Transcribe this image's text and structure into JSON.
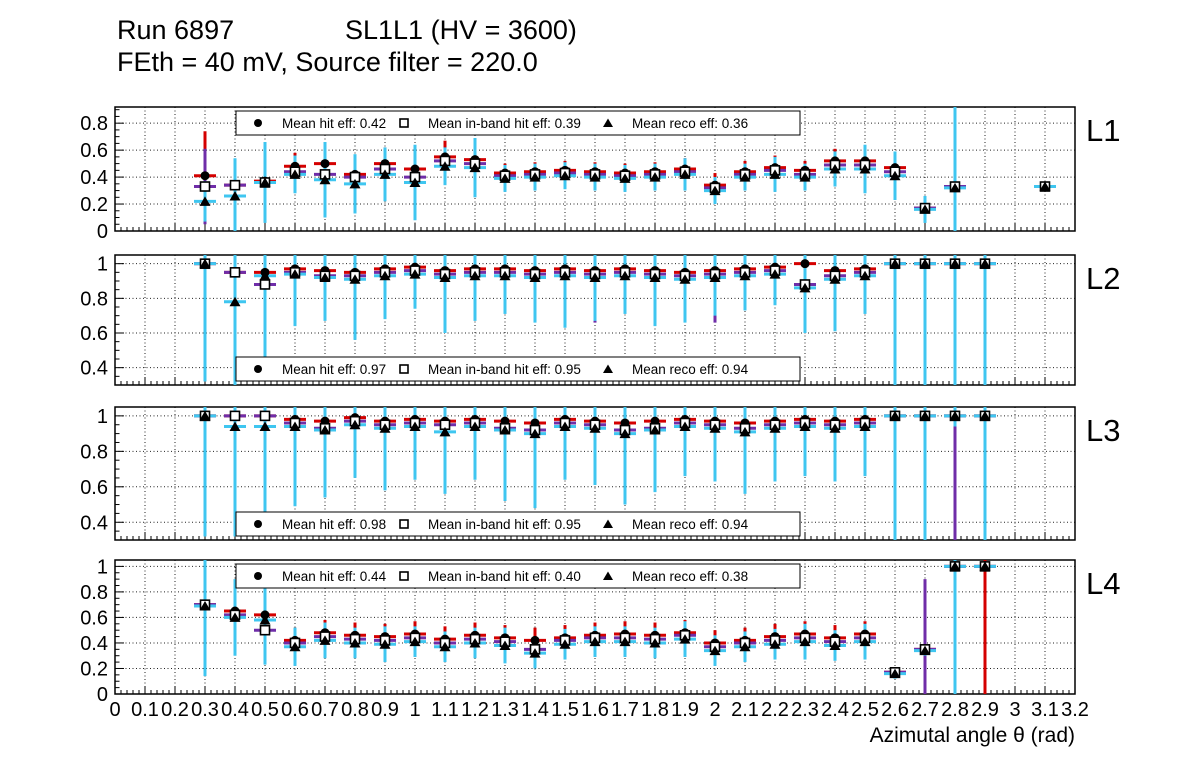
{
  "header": {
    "run_title": "Run 6897",
    "chamber_title": "SL1L1 (HV = 3600)",
    "subtitle": "FEth = 40 mV, Source filter = 220.0"
  },
  "x_axis": {
    "title": "Azimutal angle θ (rad)",
    "min": 0,
    "max": 3.2,
    "tick_labels": [
      "0",
      "0.1",
      "0.2",
      "0.3",
      "0.4",
      "0.5",
      "0.6",
      "0.7",
      "0.8",
      "0.9",
      "1",
      "1.1",
      "1.2",
      "1.3",
      "1.4",
      "1.5",
      "1.6",
      "1.7",
      "1.8",
      "1.9",
      "2",
      "2.1",
      "2.2",
      "2.3",
      "2.4",
      "2.5",
      "2.6",
      "2.7",
      "2.8",
      "2.9",
      "3",
      "3.1",
      "3.2"
    ],
    "grid": true
  },
  "palette": {
    "hit_error": "#d40000",
    "inband_error": "#6f2da8",
    "reco_error": "#3fc6f0",
    "marker": "#000000"
  },
  "chart_data": [
    {
      "type": "scatter",
      "label": "L1",
      "ylim": [
        0,
        0.92
      ],
      "yticks": [
        0,
        0.2,
        0.4,
        0.6,
        0.8
      ],
      "legend": {
        "position": "top",
        "entries": [
          {
            "marker": "circle",
            "label": "Mean hit  eff: 0.42"
          },
          {
            "marker": "square",
            "label": "Mean in-band hit eff: 0.39"
          },
          {
            "marker": "triangle",
            "label": "Mean reco eff: 0.36"
          }
        ]
      },
      "x": [
        0.3,
        0.4,
        0.5,
        0.6,
        0.7,
        0.8,
        0.9,
        1.0,
        1.1,
        1.2,
        1.3,
        1.4,
        1.5,
        1.6,
        1.7,
        1.8,
        1.9,
        2.0,
        2.1,
        2.2,
        2.3,
        2.4,
        2.5,
        2.6,
        2.7,
        2.8,
        3.1
      ],
      "series": [
        {
          "name": "hit eff",
          "marker": "circle",
          "color": "#d40000",
          "values": [
            0.41,
            0.34,
            0.37,
            0.48,
            0.5,
            0.42,
            0.5,
            0.46,
            0.55,
            0.53,
            0.43,
            0.44,
            0.45,
            0.44,
            0.43,
            0.44,
            0.46,
            0.34,
            0.44,
            0.47,
            0.45,
            0.52,
            0.52,
            0.47,
            0.17,
            0.33,
            0.33
          ],
          "errors": [
            0.33,
            0.1,
            0.1,
            0.1,
            0.12,
            0.1,
            0.12,
            0.12,
            0.12,
            0.12,
            0.07,
            0.07,
            0.07,
            0.07,
            0.07,
            0.07,
            0.08,
            0.09,
            0.08,
            0.09,
            0.07,
            0.09,
            0.1,
            0.1,
            0.04,
            0.03,
            0.02
          ]
        },
        {
          "name": "in-band hit eff",
          "marker": "square",
          "color": "#6f2da8",
          "values": [
            0.33,
            0.34,
            0.36,
            0.44,
            0.42,
            0.4,
            0.46,
            0.4,
            0.52,
            0.5,
            0.41,
            0.42,
            0.43,
            0.42,
            0.41,
            0.42,
            0.44,
            0.32,
            0.42,
            0.45,
            0.42,
            0.49,
            0.49,
            0.44,
            0.17,
            0.33,
            0.33
          ],
          "errors": [
            0.28,
            0.09,
            0.09,
            0.09,
            0.1,
            0.09,
            0.1,
            0.1,
            0.1,
            0.1,
            0.06,
            0.06,
            0.06,
            0.06,
            0.06,
            0.06,
            0.07,
            0.08,
            0.07,
            0.08,
            0.06,
            0.08,
            0.09,
            0.09,
            0.04,
            0.03,
            0.02
          ]
        },
        {
          "name": "reco eff",
          "marker": "triangle",
          "color": "#3fc6f0",
          "values": [
            0.22,
            0.26,
            0.36,
            0.42,
            0.38,
            0.35,
            0.42,
            0.36,
            0.48,
            0.47,
            0.39,
            0.4,
            0.41,
            0.4,
            0.39,
            0.4,
            0.42,
            0.3,
            0.4,
            0.42,
            0.4,
            0.46,
            0.46,
            0.41,
            0.16,
            0.32,
            0.33
          ],
          "errors": [
            0.15,
            0.28,
            0.3,
            0.14,
            0.28,
            0.22,
            0.2,
            0.28,
            0.14,
            0.22,
            0.1,
            0.1,
            0.1,
            0.1,
            0.1,
            0.1,
            0.12,
            0.1,
            0.1,
            0.13,
            0.1,
            0.13,
            0.18,
            0.18,
            0.1,
            0.92,
            0.03
          ]
        }
      ]
    },
    {
      "type": "scatter",
      "label": "L2",
      "ylim": [
        0.3,
        1.05
      ],
      "yticks": [
        0.4,
        0.6,
        0.8,
        1
      ],
      "legend": {
        "position": "bottom",
        "entries": [
          {
            "marker": "circle",
            "label": "Mean hit  eff: 0.97"
          },
          {
            "marker": "square",
            "label": "Mean in-band hit eff: 0.95"
          },
          {
            "marker": "triangle",
            "label": "Mean reco eff: 0.94"
          }
        ]
      },
      "x": [
        0.3,
        0.4,
        0.5,
        0.6,
        0.7,
        0.8,
        0.9,
        1.0,
        1.1,
        1.2,
        1.3,
        1.4,
        1.5,
        1.6,
        1.7,
        1.8,
        1.9,
        2.0,
        2.1,
        2.2,
        2.3,
        2.4,
        2.5,
        2.6,
        2.7,
        2.8,
        2.9
      ],
      "series": [
        {
          "name": "hit eff",
          "marker": "circle",
          "color": "#d40000",
          "values": [
            1.0,
            0.95,
            0.95,
            0.97,
            0.96,
            0.95,
            0.97,
            0.98,
            0.96,
            0.97,
            0.97,
            0.96,
            0.97,
            0.96,
            0.97,
            0.96,
            0.95,
            0.96,
            0.97,
            0.98,
            1.0,
            0.96,
            0.97,
            1.0,
            1.0,
            1.0,
            1.0
          ],
          "errors": 0.03
        },
        {
          "name": "in-band hit eff",
          "marker": "square",
          "color": "#6f2da8",
          "values": [
            1.0,
            0.95,
            0.88,
            0.95,
            0.93,
            0.93,
            0.95,
            0.96,
            0.94,
            0.95,
            0.95,
            0.94,
            0.95,
            0.94,
            0.95,
            0.94,
            0.93,
            0.94,
            0.95,
            0.96,
            0.88,
            0.93,
            0.95,
            1.0,
            1.0,
            1.0,
            1.0
          ],
          "errors": [
            0.05,
            0.05,
            0.06,
            0.05,
            0.05,
            0.05,
            0.05,
            0.05,
            0.05,
            0.05,
            0.05,
            0.05,
            0.05,
            0.28,
            0.05,
            0.05,
            0.05,
            0.28,
            0.05,
            0.05,
            0.06,
            0.05,
            0.05,
            0.04,
            0.04,
            0.04,
            0.04
          ]
        },
        {
          "name": "reco eff",
          "marker": "triangle",
          "color": "#3fc6f0",
          "values": [
            1.0,
            0.78,
            0.93,
            0.94,
            0.92,
            0.91,
            0.93,
            0.94,
            0.92,
            0.93,
            0.93,
            0.92,
            0.93,
            0.92,
            0.93,
            0.92,
            0.91,
            0.92,
            0.93,
            0.94,
            0.86,
            0.91,
            0.93,
            1.0,
            1.0,
            1.0,
            1.0
          ],
          "errors": [
            0.68,
            0.58,
            0.52,
            0.3,
            0.25,
            0.35,
            0.25,
            0.2,
            0.32,
            0.26,
            0.22,
            0.26,
            0.3,
            0.25,
            0.22,
            0.28,
            0.25,
            0.22,
            0.2,
            0.18,
            0.26,
            0.3,
            0.22,
            0.75,
            0.75,
            0.75,
            0.75
          ]
        }
      ]
    },
    {
      "type": "scatter",
      "label": "L3",
      "ylim": [
        0.3,
        1.05
      ],
      "yticks": [
        0.4,
        0.6,
        0.8,
        1
      ],
      "legend": {
        "position": "bottom",
        "entries": [
          {
            "marker": "circle",
            "label": "Mean hit  eff: 0.98"
          },
          {
            "marker": "square",
            "label": "Mean in-band hit eff: 0.95"
          },
          {
            "marker": "triangle",
            "label": "Mean reco eff: 0.94"
          }
        ]
      },
      "x": [
        0.3,
        0.4,
        0.5,
        0.6,
        0.7,
        0.8,
        0.9,
        1.0,
        1.1,
        1.2,
        1.3,
        1.4,
        1.5,
        1.6,
        1.7,
        1.8,
        1.9,
        2.0,
        2.1,
        2.2,
        2.3,
        2.4,
        2.5,
        2.6,
        2.7,
        2.8,
        2.9
      ],
      "series": [
        {
          "name": "hit eff",
          "marker": "circle",
          "color": "#d40000",
          "values": [
            1.0,
            1.0,
            1.0,
            0.98,
            0.97,
            0.99,
            0.97,
            0.98,
            0.97,
            0.98,
            0.97,
            0.96,
            0.98,
            0.97,
            0.96,
            0.97,
            0.98,
            0.97,
            0.96,
            0.97,
            0.98,
            0.97,
            0.98,
            1.0,
            1.0,
            1.0,
            1.0
          ],
          "errors": 0.03
        },
        {
          "name": "in-band hit eff",
          "marker": "square",
          "color": "#6f2da8",
          "values": [
            1.0,
            1.0,
            1.0,
            0.96,
            0.93,
            0.97,
            0.95,
            0.96,
            0.95,
            0.96,
            0.93,
            0.92,
            0.96,
            0.95,
            0.92,
            0.93,
            0.96,
            0.95,
            0.93,
            0.95,
            0.96,
            0.95,
            0.96,
            1.0,
            1.0,
            1.0,
            1.0
          ],
          "errors": [
            0.05,
            0.05,
            0.05,
            0.05,
            0.28,
            0.05,
            0.05,
            0.05,
            0.05,
            0.05,
            0.05,
            0.28,
            0.05,
            0.05,
            0.05,
            0.05,
            0.05,
            0.05,
            0.05,
            0.05,
            0.05,
            0.05,
            0.05,
            0.05,
            0.05,
            0.75,
            0.05
          ]
        },
        {
          "name": "reco eff",
          "marker": "triangle",
          "color": "#3fc6f0",
          "values": [
            1.0,
            0.94,
            0.94,
            0.94,
            0.92,
            0.95,
            0.93,
            0.94,
            0.91,
            0.94,
            0.92,
            0.9,
            0.94,
            0.93,
            0.9,
            0.92,
            0.94,
            0.93,
            0.91,
            0.93,
            0.94,
            0.93,
            0.94,
            1.0,
            1.0,
            1.0,
            1.0
          ],
          "errors": [
            0.68,
            0.62,
            0.6,
            0.45,
            0.38,
            0.3,
            0.35,
            0.3,
            0.35,
            0.3,
            0.4,
            0.42,
            0.3,
            0.32,
            0.4,
            0.35,
            0.28,
            0.3,
            0.35,
            0.3,
            0.28,
            0.3,
            0.28,
            0.75,
            0.75,
            0.06,
            0.75
          ]
        }
      ]
    },
    {
      "type": "scatter",
      "label": "L4",
      "ylim": [
        0,
        1.05
      ],
      "yticks": [
        0,
        0.2,
        0.4,
        0.6,
        0.8,
        1
      ],
      "legend": {
        "position": "top",
        "entries": [
          {
            "marker": "circle",
            "label": "Mean hit  eff: 0.44"
          },
          {
            "marker": "square",
            "label": "Mean in-band hit eff: 0.40"
          },
          {
            "marker": "triangle",
            "label": "Mean reco eff: 0.38"
          }
        ]
      },
      "x": [
        0.3,
        0.4,
        0.5,
        0.6,
        0.7,
        0.8,
        0.9,
        1.0,
        1.1,
        1.2,
        1.3,
        1.4,
        1.5,
        1.6,
        1.7,
        1.8,
        1.9,
        2.0,
        2.1,
        2.2,
        2.3,
        2.4,
        2.5,
        2.6,
        2.7,
        2.8,
        2.9
      ],
      "series": [
        {
          "name": "hit eff",
          "marker": "circle",
          "color": "#d40000",
          "values": [
            0.7,
            0.65,
            0.62,
            0.42,
            0.48,
            0.46,
            0.45,
            0.47,
            0.43,
            0.46,
            0.44,
            0.42,
            0.44,
            0.46,
            0.47,
            0.46,
            0.48,
            0.4,
            0.42,
            0.45,
            0.47,
            0.44,
            0.47,
            0.17,
            0.35,
            1.0,
            1.0
          ],
          "errors": [
            0.12,
            0.12,
            0.14,
            0.1,
            0.1,
            0.1,
            0.1,
            0.1,
            0.1,
            0.1,
            0.1,
            0.1,
            0.1,
            0.1,
            0.1,
            0.1,
            0.1,
            0.1,
            0.1,
            0.1,
            0.1,
            0.1,
            0.1,
            0.04,
            0.05,
            0.03,
            1.0
          ]
        },
        {
          "name": "in-band hit eff",
          "marker": "square",
          "color": "#6f2da8",
          "values": [
            0.7,
            0.62,
            0.5,
            0.4,
            0.45,
            0.43,
            0.42,
            0.44,
            0.4,
            0.43,
            0.41,
            0.35,
            0.42,
            0.44,
            0.44,
            0.43,
            0.46,
            0.37,
            0.4,
            0.42,
            0.44,
            0.41,
            0.44,
            0.17,
            0.35,
            1.0,
            1.0
          ],
          "errors": [
            0.1,
            0.1,
            0.1,
            0.08,
            0.08,
            0.08,
            0.08,
            0.08,
            0.08,
            0.08,
            0.08,
            0.08,
            0.08,
            0.08,
            0.08,
            0.08,
            0.08,
            0.08,
            0.08,
            0.08,
            0.08,
            0.08,
            0.08,
            0.04,
            0.55,
            0.02,
            0.02
          ]
        },
        {
          "name": "reco eff",
          "marker": "triangle",
          "color": "#3fc6f0",
          "values": [
            0.69,
            0.6,
            0.58,
            0.37,
            0.42,
            0.4,
            0.39,
            0.41,
            0.37,
            0.4,
            0.38,
            0.32,
            0.39,
            0.41,
            0.41,
            0.4,
            0.43,
            0.34,
            0.37,
            0.39,
            0.41,
            0.38,
            0.41,
            0.16,
            0.34,
            1.0,
            1.0
          ],
          "errors": [
            0.55,
            0.3,
            0.35,
            0.15,
            0.14,
            0.12,
            0.14,
            0.12,
            0.12,
            0.12,
            0.14,
            0.12,
            0.12,
            0.12,
            0.12,
            0.12,
            0.14,
            0.12,
            0.12,
            0.12,
            0.14,
            0.12,
            0.14,
            0.04,
            0.04,
            1.0,
            0.02
          ]
        }
      ]
    }
  ]
}
